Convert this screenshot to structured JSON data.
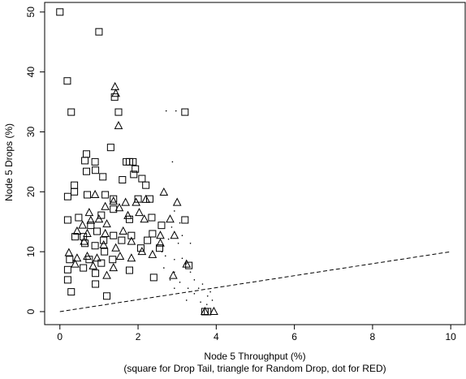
{
  "chart_data": {
    "type": "scatter",
    "xlabel": "Node 5 Throughput (%)",
    "caption": "(square for Drop Tail, triangle for Random Drop, dot for RED)",
    "ylabel": "Node 5 Drops (%)",
    "xlim": [
      -0.39,
      10.37
    ],
    "ylim": [
      -2.17,
      51.6
    ],
    "xticks": [
      0,
      2,
      4,
      6,
      8,
      10
    ],
    "yticks": [
      0,
      10,
      20,
      30,
      40,
      50
    ],
    "color": "#000000",
    "series": [
      {
        "marker": "square",
        "x": [
          0,
          1.0,
          0.19,
          0.29,
          1.5,
          1.4,
          3.2,
          1.3,
          0.68,
          0.64,
          0.9,
          1.7,
          1.78,
          1.87,
          1.93,
          1.89,
          0.37,
          0.37,
          0.68,
          0.91,
          1.1,
          1.6,
          2.1,
          2.2,
          0.2,
          0.7,
          1.16,
          1.37,
          2.0,
          2.3,
          0.2,
          0.48,
          3.2,
          2.35,
          1.78,
          1.37,
          1.06,
          0.79,
          0.95,
          0.6,
          0.39,
          1.12,
          0.9,
          1.58,
          1.83,
          2.6,
          2.37,
          2.24,
          2.07,
          2.55,
          0.25,
          0.2,
          0.2,
          0.29,
          0.6,
          0.91,
          0.91,
          1.2,
          1.78,
          2.4,
          3.3,
          0.75,
          1.06,
          1.35,
          3.71,
          3.78,
          1.37,
          1.14,
          0.64
        ],
        "values": [
          50,
          46.7,
          38.5,
          33.3,
          33.3,
          35.8,
          33.3,
          27.4,
          26.3,
          25.2,
          25,
          25,
          25,
          25,
          23.8,
          22.9,
          21.1,
          20,
          23.4,
          23.6,
          22.5,
          22,
          22.2,
          21.1,
          19.2,
          19.5,
          19.5,
          18.8,
          18.8,
          18.8,
          15.3,
          15.7,
          15.3,
          15.7,
          15.4,
          17.1,
          16.1,
          14.4,
          13.4,
          12.5,
          12.5,
          11.9,
          11,
          11.9,
          12.7,
          14.4,
          13,
          11.9,
          10.6,
          10.6,
          8.7,
          7,
          5.3,
          3.3,
          7.3,
          6.4,
          4.6,
          2.6,
          6.9,
          5.7,
          7.7,
          8.7,
          8.1,
          8.7,
          0,
          0,
          12.7,
          10,
          11.4
        ]
      },
      {
        "marker": "triangle",
        "x": [
          1.41,
          1.5,
          1.43,
          2.66,
          3.0,
          2.2,
          1.95,
          1.68,
          1.37,
          1.16,
          1.52,
          0.75,
          1.0,
          0.79,
          0.58,
          1.2,
          1.74,
          2.03,
          2.82,
          2.16,
          0.44,
          0.7,
          1.16,
          1.62,
          2.57,
          2.93,
          0.23,
          0.44,
          0.7,
          0.95,
          1.54,
          1.83,
          2.1,
          2.37,
          0.39,
          0.85,
          1.37,
          1.2,
          2.9,
          3.24,
          0.62,
          1.12,
          1.43,
          1.83,
          2.57,
          3.71,
          3.94,
          0.9
        ],
        "values": [
          37.5,
          31,
          36.4,
          19.9,
          18.2,
          18.7,
          18.2,
          18.2,
          18.4,
          17.5,
          17.3,
          16.5,
          15.4,
          15.2,
          14.4,
          14.6,
          16,
          16.5,
          15.4,
          15.4,
          13.4,
          13,
          13,
          13.4,
          12.7,
          12.7,
          9.8,
          8.9,
          9.2,
          8.9,
          9.2,
          8.9,
          10,
          9.5,
          7.9,
          7.6,
          7.3,
          6,
          6,
          7.9,
          11.7,
          11.1,
          10.6,
          11.7,
          11.4,
          0,
          0,
          19.5
        ]
      },
      {
        "marker": "dot",
        "x": [
          2.72,
          2.97,
          2.88,
          2.93,
          3.07,
          2.86,
          3.13,
          2.78,
          3.03,
          2.61,
          3.34,
          2.7,
          2.93,
          3.13,
          3.24,
          2.66,
          2.93,
          3.34,
          2.82,
          3.07,
          3.44,
          3.55,
          3.28,
          3.65,
          2.93,
          3.78,
          3.44,
          3.9,
          3.76,
          3.6,
          3.24,
          3.85
        ],
        "values": [
          33.5,
          33.5,
          25,
          16.8,
          14.8,
          14.1,
          12.7,
          12.1,
          11.4,
          10,
          11.4,
          9.3,
          8.7,
          8.9,
          8,
          7.3,
          6.6,
          6.6,
          5.3,
          4.9,
          5.3,
          3.9,
          3.9,
          4.6,
          3.9,
          2.6,
          3,
          1.9,
          1.2,
          1.6,
          1.9,
          3.3
        ]
      }
    ],
    "reference_line": {
      "x": [
        0,
        10
      ],
      "values": [
        0,
        10
      ]
    }
  }
}
